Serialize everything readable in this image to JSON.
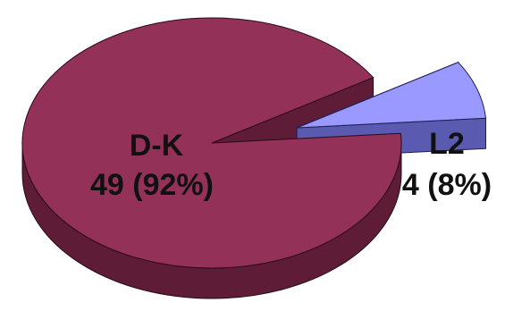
{
  "chart_data": {
    "type": "pie",
    "style": "3d-exploded",
    "title": "",
    "slices": [
      {
        "label": "D-K",
        "value": 49,
        "percent_label": "49 (92%)",
        "color": "#943159",
        "side_color": "#5e1c36",
        "exploded": false
      },
      {
        "label": "L2",
        "value": 4,
        "percent_label": "4 (8%)",
        "color": "#9999ff",
        "side_color": "#5a5ab0",
        "exploded": true
      }
    ]
  }
}
